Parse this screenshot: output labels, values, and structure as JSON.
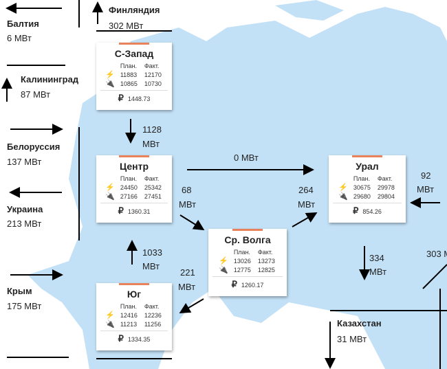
{
  "colors": {
    "land": "#c3e1f6",
    "accent": "#e8825a"
  },
  "borders": [
    {
      "name": "Балтия",
      "value": "6 МВт"
    },
    {
      "name": "Финляндия",
      "value": "302 МВт"
    },
    {
      "name": "Калининград",
      "value": "87 МВт"
    },
    {
      "name": "Белоруссия",
      "value": "137 МВт"
    },
    {
      "name": "Украина",
      "value": "213 МВт"
    },
    {
      "name": "Крым",
      "value": "175 МВт"
    },
    {
      "name": "Казахстан",
      "value": "31 МВт"
    }
  ],
  "flows": {
    "sz_center": "1128",
    "center_ural": "0 МВт",
    "center_volga": "68",
    "volga_ural": "264",
    "south_center": "1033",
    "volga_south": "221",
    "east_ural": "92",
    "ural_kz": "334",
    "east2": "303 М",
    "unit": "МВт"
  },
  "headers": {
    "plan": "План.",
    "fact": "Факт."
  },
  "regions": [
    {
      "name": "С-Запад",
      "gen_plan": "11883",
      "gen_fact": "12170",
      "cons_plan": "10865",
      "cons_fact": "10730",
      "price": "1448.73"
    },
    {
      "name": "Центр",
      "gen_plan": "24450",
      "gen_fact": "25342",
      "cons_plan": "27166",
      "cons_fact": "27451",
      "price": "1360.31"
    },
    {
      "name": "Юг",
      "gen_plan": "12416",
      "gen_fact": "12236",
      "cons_plan": "11213",
      "cons_fact": "11256",
      "price": "1334.35"
    },
    {
      "name": "Ср. Волга",
      "gen_plan": "13026",
      "gen_fact": "13273",
      "cons_plan": "12775",
      "cons_fact": "12825",
      "price": "1260.17"
    },
    {
      "name": "Урал",
      "gen_plan": "30675",
      "gen_fact": "29978",
      "cons_plan": "29680",
      "cons_fact": "29804",
      "price": "854.26"
    }
  ]
}
